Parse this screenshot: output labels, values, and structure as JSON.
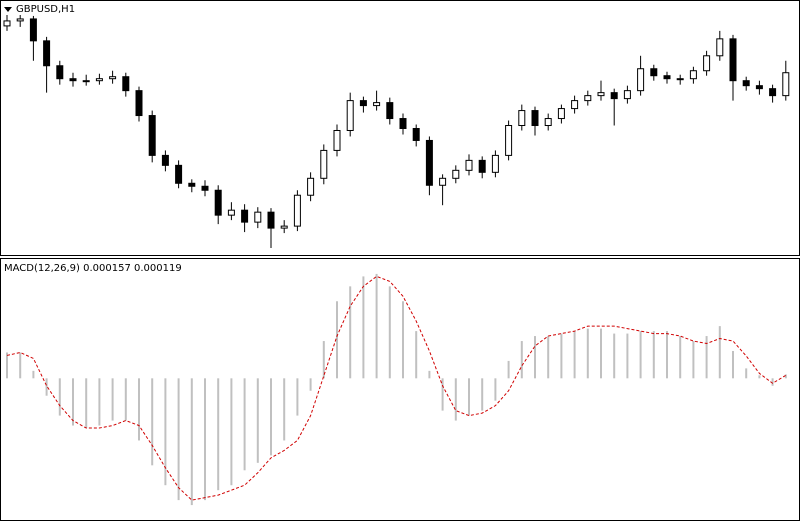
{
  "chart_data": [
    {
      "type": "candlestick",
      "title": "GBPUSD,H1",
      "open": [
        1.3075,
        1.308,
        1.3082,
        1.306,
        1.3035,
        1.3022,
        1.302,
        1.302,
        1.3022,
        1.3024,
        1.301,
        1.2985,
        1.2945,
        1.2935,
        1.2917,
        1.2914,
        1.291,
        1.2885,
        1.289,
        1.2878,
        1.2888,
        1.2872,
        1.2874,
        1.2905,
        1.2922,
        1.295,
        1.297,
        1.3,
        1.2995,
        1.2998,
        1.2982,
        1.2972,
        1.296,
        1.2915,
        1.2922,
        1.293,
        1.294,
        1.2928,
        1.2945,
        1.2975,
        1.299,
        1.2975,
        1.2982,
        1.2992,
        1.3,
        1.3005,
        1.3008,
        1.3002,
        1.301,
        1.3032,
        1.3025,
        1.3022,
        1.3022,
        1.303,
        1.3045,
        1.3062,
        1.302,
        1.3015,
        1.3012,
        1.3005
      ],
      "high": [
        1.3086,
        1.3087,
        1.3085,
        1.3064,
        1.304,
        1.3028,
        1.3026,
        1.3027,
        1.303,
        1.3028,
        1.3014,
        1.299,
        1.295,
        1.294,
        1.2921,
        1.292,
        1.2915,
        1.2898,
        1.2896,
        1.2893,
        1.2892,
        1.288,
        1.291,
        1.2928,
        1.2956,
        1.2976,
        1.3008,
        1.3004,
        1.301,
        1.3003,
        1.2987,
        1.2976,
        1.2964,
        1.2926,
        1.2935,
        1.2946,
        1.2944,
        1.295,
        1.298,
        1.2996,
        1.2994,
        1.2987,
        1.2996,
        1.3005,
        1.301,
        1.302,
        1.3012,
        1.3015,
        1.3045,
        1.3036,
        1.3029,
        1.3026,
        1.3034,
        1.305,
        1.307,
        1.3066,
        1.3024,
        1.302,
        1.3016,
        1.304
      ],
      "low": [
        1.307,
        1.3074,
        1.304,
        1.3008,
        1.3016,
        1.3014,
        1.3015,
        1.3016,
        1.3017,
        1.3004,
        1.2979,
        1.2938,
        1.2929,
        1.2912,
        1.2908,
        1.2904,
        1.2876,
        1.288,
        1.2868,
        1.2872,
        1.2852,
        1.2867,
        1.2869,
        1.2899,
        1.2916,
        1.2944,
        1.2964,
        1.2988,
        1.299,
        1.2976,
        1.2966,
        1.2954,
        1.2905,
        1.2895,
        1.2917,
        1.2925,
        1.2922,
        1.2923,
        1.294,
        1.297,
        1.2965,
        1.297,
        1.2977,
        1.2987,
        1.2995,
        1.3,
        1.2975,
        1.2997,
        1.3005,
        1.302,
        1.3017,
        1.3016,
        1.3017,
        1.3025,
        1.304,
        1.3,
        1.301,
        1.3006,
        1.2998,
        1.3
      ],
      "close": [
        1.308,
        1.3082,
        1.306,
        1.3035,
        1.3022,
        1.302,
        1.302,
        1.3022,
        1.3024,
        1.301,
        1.2985,
        1.2945,
        1.2935,
        1.2917,
        1.2914,
        1.291,
        1.2885,
        1.289,
        1.2878,
        1.2888,
        1.2872,
        1.2874,
        1.2905,
        1.2922,
        1.295,
        1.297,
        1.3,
        1.2995,
        1.2998,
        1.2982,
        1.2972,
        1.296,
        1.2915,
        1.2922,
        1.293,
        1.294,
        1.2928,
        1.2945,
        1.2975,
        1.299,
        1.2975,
        1.2982,
        1.2992,
        1.3,
        1.3005,
        1.3008,
        1.3002,
        1.301,
        1.3032,
        1.3025,
        1.3022,
        1.3022,
        1.303,
        1.3045,
        1.3062,
        1.302,
        1.3015,
        1.3012,
        1.3005,
        1.3028
      ],
      "ylim": [
        1.2845,
        1.31
      ],
      "color": "#000000"
    },
    {
      "type": "macd",
      "title": "MACD(12,26,9) 0.000157 0.000119",
      "values": [
        0.00104,
        0.00104,
        0.0003,
        -0.0007,
        -0.0015,
        -0.0019,
        -0.002,
        -0.0019,
        -0.0017,
        -0.0017,
        -0.0025,
        -0.0035,
        -0.0043,
        -0.0049,
        -0.0051,
        -0.0049,
        -0.0045,
        -0.0043,
        -0.0037,
        -0.0034,
        -0.0031,
        -0.0025,
        -0.0015,
        -0.0005,
        0.0015,
        0.0031,
        0.0037,
        0.0041,
        0.0042,
        0.0037,
        0.0031,
        0.0019,
        0.0003,
        -0.0013,
        -0.0017,
        -0.0015,
        -0.0013,
        -0.0009,
        0.0007,
        0.0015,
        0.0017,
        0.0017,
        0.0018,
        0.0019,
        0.002,
        0.002,
        0.0018,
        0.0018,
        0.0019,
        0.0019,
        0.0019,
        0.0017,
        0.0015,
        0.0017,
        0.0021,
        0.0011,
        0.0004,
        0.00012,
        -0.0003,
        0.000157
      ],
      "signal": [
        0.00092,
        0.00104,
        0.0008,
        -0.0003,
        -0.0011,
        -0.0017,
        -0.002,
        -0.002,
        -0.0019,
        -0.0017,
        -0.0019,
        -0.0027,
        -0.0036,
        -0.0044,
        -0.0049,
        -0.0048,
        -0.0047,
        -0.0045,
        -0.0043,
        -0.0038,
        -0.0032,
        -0.0029,
        -0.0025,
        -0.0015,
        0.0001,
        0.0017,
        0.0029,
        0.0037,
        0.0041,
        0.0039,
        0.0033,
        0.0023,
        0.0011,
        -0.0003,
        -0.0013,
        -0.0015,
        -0.0014,
        -0.0011,
        -0.0005,
        0.0005,
        0.0013,
        0.0017,
        0.0018,
        0.0019,
        0.0021,
        0.0021,
        0.0021,
        0.002,
        0.0019,
        0.0018,
        0.0018,
        0.0017,
        0.0015,
        0.0014,
        0.0016,
        0.0015,
        0.0009,
        0.0002,
        -0.0002,
        0.000119
      ],
      "ylim": [
        -0.0057,
        0.0048
      ],
      "color": "#c0c0c0",
      "signal_color": "#d00000"
    }
  ]
}
